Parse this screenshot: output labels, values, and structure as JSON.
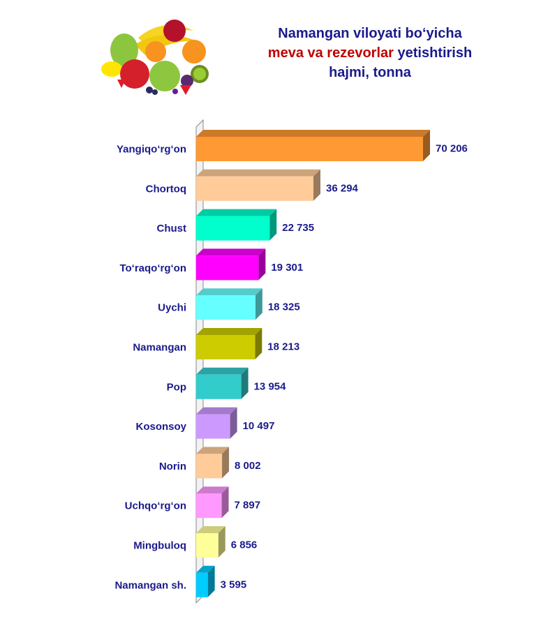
{
  "header": {
    "title_line1": "Namangan viloyati bo‘yicha",
    "title_line2_highlight": "meva va rezevorlar",
    "title_line2_rest": " yetishtirish",
    "title_line3": "hajmi, tonna"
  },
  "image": {
    "icon": "fruit-basket-icon"
  },
  "chart_data": {
    "type": "bar",
    "orientation": "horizontal",
    "categories": [
      "Yangiqo‘rg‘on",
      "Chortoq",
      "Chust",
      "To‘raqo‘rg‘on",
      "Uychi",
      "Namangan",
      "Pop",
      "Kosonsoy",
      "Norin",
      "Uchqo‘rg‘on",
      "Mingbuloq",
      "Namangan sh."
    ],
    "values": [
      70206,
      36294,
      22735,
      19301,
      18325,
      18213,
      13954,
      10497,
      8002,
      7897,
      6856,
      3595
    ],
    "value_labels": [
      "70 206",
      "36 294",
      "22 735",
      "19 301",
      "18 325",
      "18 213",
      "13 954",
      "10 497",
      "8 002",
      "7 897",
      "6 856",
      "3 595"
    ],
    "colors": [
      "#ff9933",
      "#ffcc99",
      "#00ffcc",
      "#ff00ff",
      "#66ffff",
      "#cccc00",
      "#33cccc",
      "#cc99ff",
      "#ffcc99",
      "#ff99ff",
      "#ffff99",
      "#00ccff"
    ],
    "title": "Namangan viloyati bo‘yicha meva va rezevorlar yetishtirish hajmi, tonna",
    "xlabel": "",
    "ylabel": "",
    "xlim": [
      0,
      70206
    ],
    "grid": false,
    "legend": "none"
  }
}
